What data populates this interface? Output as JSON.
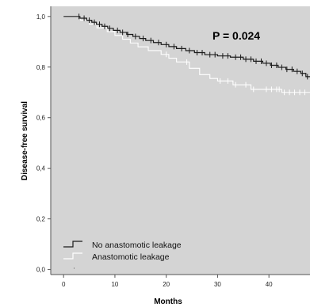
{
  "chart_data": {
    "type": "line",
    "subtype": "kaplan-meier",
    "xlabel": "Months",
    "ylabel": "Disease-free survival",
    "xlim": [
      -2.5,
      48
    ],
    "ylim": [
      -0.02,
      1.04
    ],
    "x_ticks": [
      0,
      10,
      20,
      30,
      40
    ],
    "x_tick_labels": [
      "0",
      "10",
      "20",
      "30",
      "40"
    ],
    "y_ticks": [
      0.0,
      0.2,
      0.4,
      0.6,
      0.8,
      1.0
    ],
    "y_tick_labels": [
      "0,0",
      "0,2",
      "0,4",
      "0,6",
      "0,8",
      "1,0"
    ],
    "annotation": "P = 0.024",
    "legend_position": "bottom-left",
    "grid": false,
    "colors": {
      "plot_background": "#d4d4d4",
      "page_background": "#ffffff",
      "no_leakage_line": "#1a1a1a",
      "leakage_line": "#ffffff"
    },
    "series": [
      {
        "name": "No anastomotic leakage",
        "step_points": [
          [
            0,
            1.0
          ],
          [
            2.5,
            1.0
          ],
          [
            3.2,
            0.993
          ],
          [
            4.5,
            0.985
          ],
          [
            5.5,
            0.977
          ],
          [
            6.4,
            0.969
          ],
          [
            7.5,
            0.961
          ],
          [
            8.6,
            0.953
          ],
          [
            9.7,
            0.945
          ],
          [
            11,
            0.937
          ],
          [
            12.3,
            0.929
          ],
          [
            13.5,
            0.921
          ],
          [
            14.8,
            0.913
          ],
          [
            16,
            0.905
          ],
          [
            17.5,
            0.897
          ],
          [
            19,
            0.889
          ],
          [
            20.5,
            0.881
          ],
          [
            22,
            0.873
          ],
          [
            23.8,
            0.865
          ],
          [
            25.5,
            0.857
          ],
          [
            27.5,
            0.849
          ],
          [
            30,
            0.844
          ],
          [
            32.5,
            0.839
          ],
          [
            35,
            0.831
          ],
          [
            37,
            0.823
          ],
          [
            38.8,
            0.815
          ],
          [
            40.3,
            0.807
          ],
          [
            41.8,
            0.799
          ],
          [
            43.3,
            0.791
          ],
          [
            44.8,
            0.783
          ],
          [
            46.2,
            0.775
          ],
          [
            47.2,
            0.762
          ],
          [
            48,
            0.762
          ]
        ],
        "censor_times": [
          3.0,
          4.0,
          5.0,
          6.0,
          7.0,
          8.0,
          9.0,
          10.5,
          11.5,
          12.5,
          14.0,
          15.5,
          17.0,
          18.5,
          20.0,
          21.5,
          23.0,
          24.5,
          26.0,
          27.0,
          28.5,
          29.5,
          31.0,
          32.0,
          33.5,
          34.5,
          35.5,
          36.5,
          37.5,
          38.5,
          39.5,
          40.5,
          41.5,
          42.5,
          43.5,
          44.5,
          45.5,
          46.5,
          47.5
        ]
      },
      {
        "name": "Anastomotic leakage",
        "step_points": [
          [
            0,
            1.0
          ],
          [
            2.5,
            1.0
          ],
          [
            3.3,
            0.985
          ],
          [
            5,
            0.97
          ],
          [
            6.5,
            0.955
          ],
          [
            8.5,
            0.94
          ],
          [
            10,
            0.925
          ],
          [
            11.5,
            0.91
          ],
          [
            13,
            0.895
          ],
          [
            14.5,
            0.88
          ],
          [
            16.5,
            0.865
          ],
          [
            19,
            0.85
          ],
          [
            20.5,
            0.835
          ],
          [
            22,
            0.82
          ],
          [
            24.5,
            0.795
          ],
          [
            26.5,
            0.77
          ],
          [
            28.5,
            0.755
          ],
          [
            30,
            0.745
          ],
          [
            33,
            0.73
          ],
          [
            36.5,
            0.712
          ],
          [
            42.5,
            0.7
          ],
          [
            48,
            0.7
          ]
        ],
        "censor_times": [
          20.0,
          24.0,
          30.5,
          32.0,
          33.5,
          35.5,
          37.0,
          39.5,
          40.5,
          41.5,
          42.0,
          43.0,
          44.0,
          45.0,
          46.0,
          47.0
        ]
      }
    ]
  }
}
